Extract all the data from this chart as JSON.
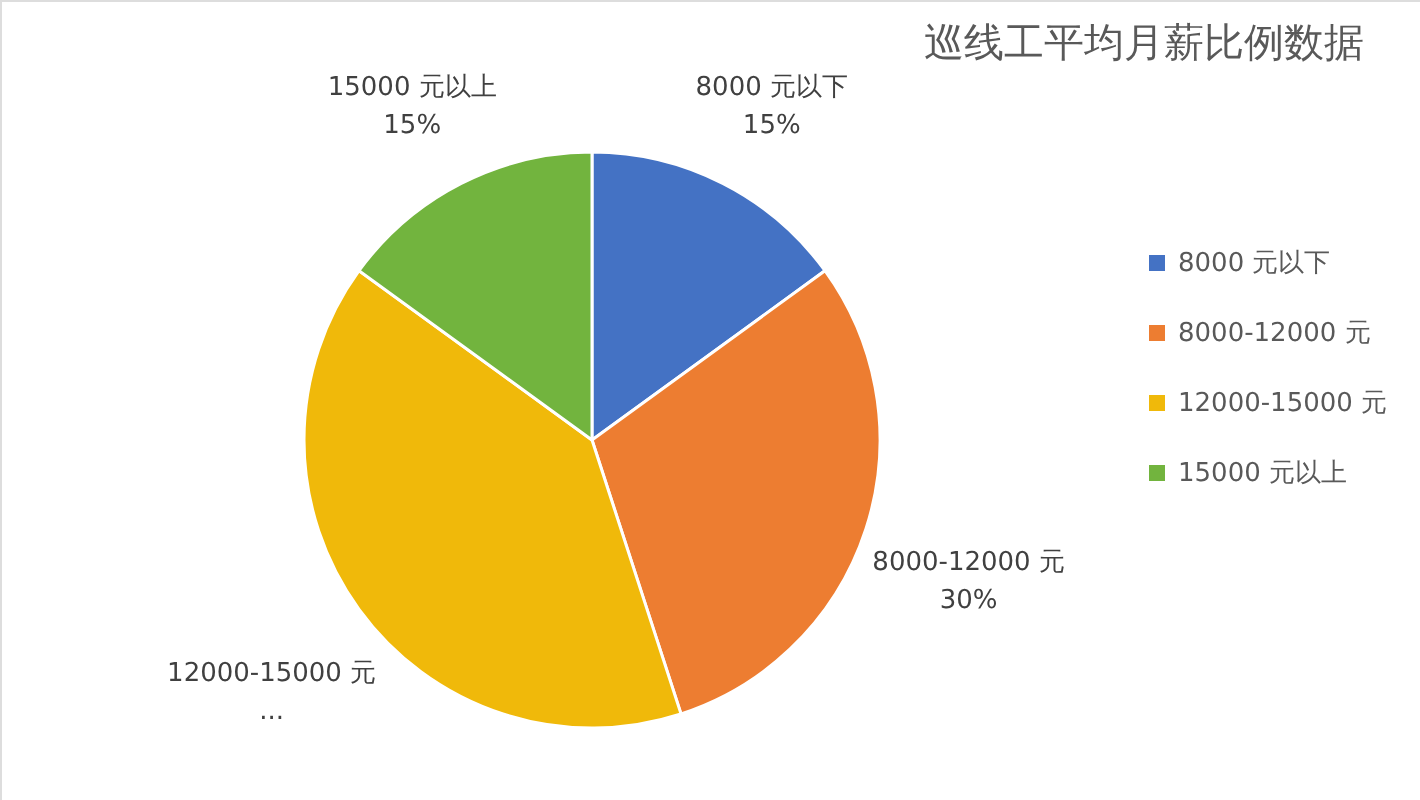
{
  "chart_data": {
    "type": "pie",
    "title": "巡线工平均月薪比例数据",
    "categories": [
      "8000 元以下",
      "8000-12000 元",
      "12000-15000 元",
      "15000 元以上"
    ],
    "values": [
      15,
      30,
      40,
      15
    ],
    "colors": [
      "#4472c4",
      "#ed7d31",
      "#f0b90a",
      "#72b43e"
    ],
    "value_labels": [
      "15%",
      "30%",
      "...",
      "15%"
    ],
    "legend": "right"
  }
}
